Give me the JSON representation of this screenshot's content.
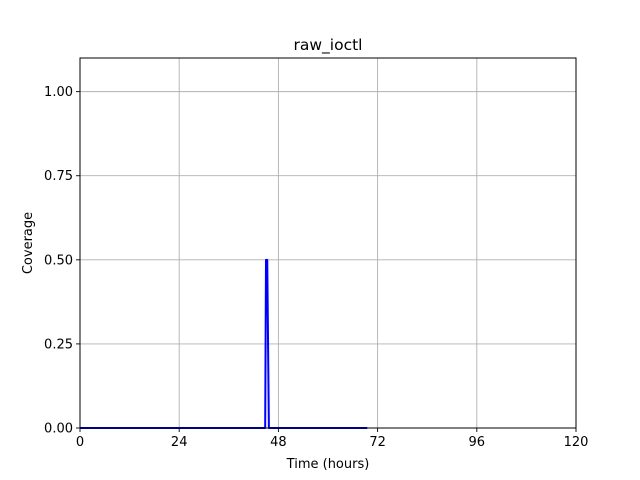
{
  "chart_data": {
    "type": "line",
    "title": "raw_ioctl",
    "xlabel": "Time (hours)",
    "ylabel": "Coverage",
    "xlim": [
      0,
      120
    ],
    "ylim": [
      0,
      1.1
    ],
    "xticks": [
      0,
      24,
      48,
      72,
      96,
      120
    ],
    "yticks": [
      0.0,
      0.25,
      0.5,
      0.75,
      1.0
    ],
    "xtick_labels": [
      "0",
      "24",
      "48",
      "72",
      "96",
      "120"
    ],
    "ytick_labels": [
      "0.00",
      "0.25",
      "0.50",
      "0.75",
      "1.00"
    ],
    "grid": true,
    "series": [
      {
        "color": "#0000ff",
        "x": [
          0,
          44.8,
          45.0,
          45.3,
          45.7,
          46.0,
          69.5
        ],
        "y": [
          0,
          0,
          0.5,
          0.5,
          0,
          0,
          0
        ]
      }
    ]
  }
}
